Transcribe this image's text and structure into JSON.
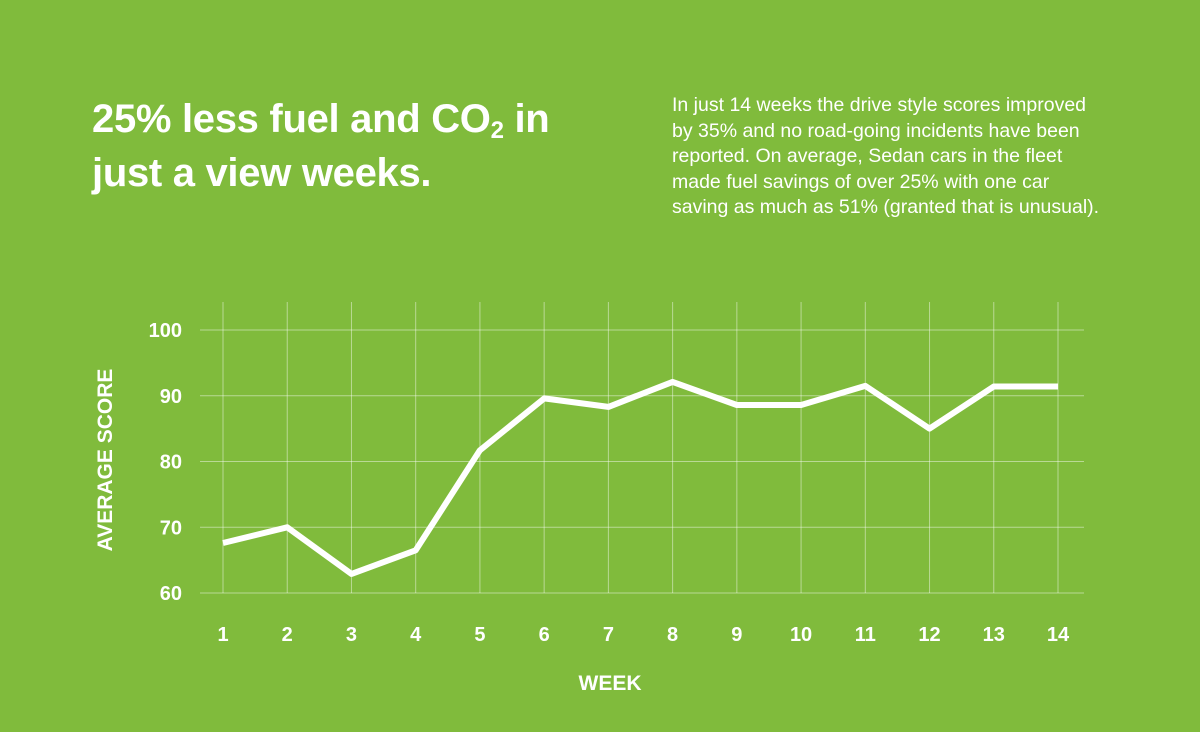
{
  "headline": {
    "line1_prefix": "25% less fuel and CO",
    "subscript": "2",
    "line1_suffix": " in",
    "line2": "just a view weeks."
  },
  "description": "In just 14 weeks the drive style scores improved by 35% and no road-going incidents have been reported. On average, Sedan cars in the fleet made fuel savings of over 25% with one car saving as much as 51% (granted that is unusual).",
  "colors": {
    "background": "#80bb3c",
    "line": "#ffffff"
  },
  "chart_data": {
    "type": "line",
    "x": [
      1,
      2,
      3,
      4,
      5,
      6,
      7,
      8,
      9,
      10,
      11,
      12,
      13,
      14
    ],
    "x_tick_labels": [
      "1",
      "2",
      "3",
      "4",
      "5",
      "6",
      "7",
      "8",
      "9",
      "10",
      "11",
      "12",
      "13",
      "14"
    ],
    "y_ticks": [
      60,
      70,
      80,
      90,
      100
    ],
    "y_tick_labels": [
      "60",
      "70",
      "80",
      "90",
      "100"
    ],
    "values": [
      67.6,
      70,
      62.9,
      66.5,
      81.7,
      89.6,
      88.3,
      92.1,
      88.6,
      88.6,
      91.5,
      85,
      91.4,
      91.4
    ],
    "xlabel": "WEEK",
    "ylabel": "AVERAGE SCORE",
    "ylim": [
      60,
      100
    ],
    "xlim": [
      1,
      14
    ],
    "grid": true,
    "legend": "none"
  }
}
